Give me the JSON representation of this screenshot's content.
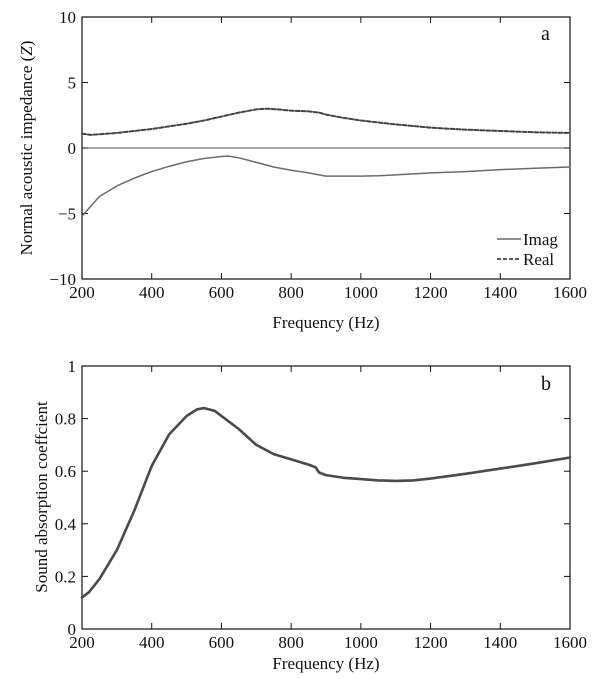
{
  "chart_data": [
    {
      "type": "line",
      "panel_label": "a",
      "xlabel": "Frequency (Hz)",
      "ylabel_main": "Normal acoustic impedance (",
      "ylabel_symbol": "Z",
      "ylabel_end": ")",
      "xlim": [
        200,
        1600
      ],
      "ylim": [
        -10,
        10
      ],
      "xticks": [
        "200",
        "400",
        "600",
        "800",
        "1000",
        "1200",
        "1400",
        "1600"
      ],
      "yticks": [
        "10",
        "5",
        "0",
        "−5",
        "−10"
      ],
      "legend_position": "bottom-right",
      "series": [
        {
          "name": "Imag",
          "style": "solid",
          "color": "#6b6b6b",
          "x": [
            200,
            250,
            300,
            350,
            400,
            450,
            500,
            550,
            600,
            620,
            650,
            700,
            750,
            800,
            850,
            880,
            900,
            950,
            1000,
            1050,
            1100,
            1200,
            1300,
            1400,
            1500,
            1600
          ],
          "y": [
            -5.2,
            -3.7,
            -2.9,
            -2.3,
            -1.8,
            -1.4,
            -1.05,
            -0.8,
            -0.65,
            -0.62,
            -0.75,
            -1.1,
            -1.45,
            -1.7,
            -1.9,
            -2.05,
            -2.15,
            -2.15,
            -2.15,
            -2.12,
            -2.05,
            -1.9,
            -1.8,
            -1.65,
            -1.55,
            -1.45
          ]
        },
        {
          "name": "Real",
          "style": "dashed",
          "color": "#444444",
          "x": [
            200,
            225,
            250,
            300,
            350,
            400,
            450,
            500,
            550,
            600,
            650,
            700,
            730,
            760,
            800,
            850,
            880,
            900,
            950,
            1000,
            1050,
            1100,
            1200,
            1300,
            1400,
            1500,
            1600
          ],
          "y": [
            1.1,
            1.0,
            1.05,
            1.15,
            1.3,
            1.45,
            1.65,
            1.85,
            2.1,
            2.4,
            2.7,
            2.95,
            3.0,
            2.95,
            2.85,
            2.8,
            2.7,
            2.55,
            2.3,
            2.1,
            1.95,
            1.8,
            1.55,
            1.4,
            1.3,
            1.2,
            1.15
          ]
        }
      ]
    },
    {
      "type": "line",
      "panel_label": "b",
      "xlabel": "Frequency (Hz)",
      "ylabel": "Sound absorption coeffcient",
      "xlim": [
        200,
        1600
      ],
      "ylim": [
        0,
        1
      ],
      "xticks": [
        "200",
        "400",
        "600",
        "800",
        "1000",
        "1200",
        "1400",
        "1600"
      ],
      "yticks": [
        "1",
        "0.8",
        "0.6",
        "0.4",
        "0.2",
        "0"
      ],
      "series": [
        {
          "style": "solid",
          "color": "#4a4a4a",
          "x": [
            200,
            220,
            250,
            300,
            350,
            400,
            450,
            500,
            530,
            550,
            580,
            600,
            650,
            700,
            750,
            800,
            850,
            870,
            880,
            900,
            950,
            1000,
            1050,
            1100,
            1150,
            1200,
            1300,
            1400,
            1500,
            1600
          ],
          "y": [
            0.12,
            0.14,
            0.19,
            0.3,
            0.45,
            0.62,
            0.74,
            0.81,
            0.835,
            0.84,
            0.83,
            0.81,
            0.76,
            0.7,
            0.665,
            0.645,
            0.625,
            0.615,
            0.595,
            0.585,
            0.575,
            0.57,
            0.565,
            0.563,
            0.565,
            0.572,
            0.59,
            0.61,
            0.63,
            0.652
          ]
        }
      ]
    }
  ]
}
